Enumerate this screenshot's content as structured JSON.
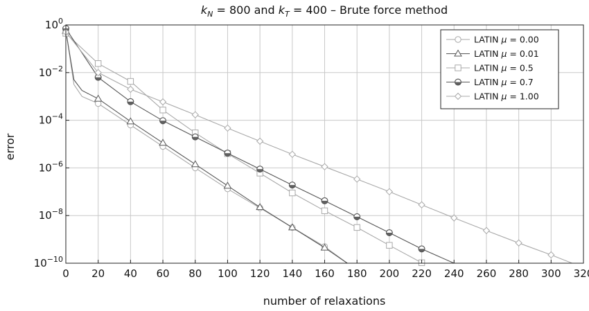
{
  "chart_data": {
    "type": "line",
    "title": "k_N = 800 and k_T = 400 – Brute force method",
    "title_parts": {
      "k1": "k",
      "sub1": "N",
      "mid": " = 800 and ",
      "k2": "k",
      "sub2": "T",
      "tail": " = 400 – Brute force method"
    },
    "xlabel": "number of relaxations",
    "ylabel": "error",
    "xlim": [
      0,
      320
    ],
    "ylim_log10": [
      -10,
      0
    ],
    "y_scale": "log",
    "grid": true,
    "legend_position": "top-right",
    "x_ticks": [
      "0",
      "20",
      "40",
      "60",
      "80",
      "100",
      "120",
      "140",
      "160",
      "180",
      "200",
      "220",
      "240",
      "260",
      "280",
      "300",
      "320"
    ],
    "y_ticks": [
      {
        "base": "10",
        "exp": "0"
      },
      {
        "base": "10",
        "exp": "−2"
      },
      {
        "base": "10",
        "exp": "−4"
      },
      {
        "base": "10",
        "exp": "−6"
      },
      {
        "base": "10",
        "exp": "−8"
      },
      {
        "base": "10",
        "exp": "−10"
      }
    ],
    "series": [
      {
        "name": "LATIN μ = 0.00",
        "legend_label": {
          "pre": "LATIN ",
          "mu": "μ",
          "post": " = 0.00"
        },
        "marker": "circle",
        "fill": "white",
        "color": "#a8a8a8",
        "x": [
          0,
          5,
          10,
          20,
          40,
          60,
          80,
          100,
          120,
          140,
          160,
          174
        ],
        "log10y": [
          -0.2,
          -2.5,
          -3.0,
          -3.3,
          -4.2,
          -5.1,
          -6.0,
          -6.88,
          -7.68,
          -8.5,
          -9.3,
          -10.0
        ],
        "marker_x": [
          0,
          20,
          40,
          60,
          80,
          100,
          120,
          140,
          160
        ],
        "marker_log10y": [
          -0.2,
          -3.3,
          -4.2,
          -5.1,
          -6.0,
          -6.88,
          -7.68,
          -8.5,
          -9.3
        ]
      },
      {
        "name": "LATIN μ = 0.01",
        "legend_label": {
          "pre": "LATIN ",
          "mu": "μ",
          "post": " = 0.01"
        },
        "marker": "triangle",
        "fill": "white",
        "color": "#555555",
        "x": [
          0,
          5,
          10,
          20,
          40,
          60,
          80,
          100,
          120,
          140,
          160,
          174
        ],
        "log10y": [
          -0.25,
          -2.3,
          -2.75,
          -3.1,
          -4.05,
          -4.95,
          -5.85,
          -6.75,
          -7.65,
          -8.5,
          -9.35,
          -10.0
        ],
        "marker_x": [
          0,
          20,
          40,
          60,
          80,
          100,
          120,
          140,
          160
        ],
        "marker_log10y": [
          -0.25,
          -3.1,
          -4.05,
          -4.95,
          -5.85,
          -6.75,
          -7.65,
          -8.5,
          -9.35
        ]
      },
      {
        "name": "LATIN μ = 0.5",
        "legend_label": {
          "pre": "LATIN ",
          "mu": "μ",
          "post": " = 0.5"
        },
        "marker": "square",
        "fill": "white",
        "color": "#a8a8a8",
        "x": [
          0,
          20,
          40,
          60,
          80,
          100,
          120,
          140,
          160,
          180,
          200,
          220,
          222
        ],
        "log10y": [
          -0.35,
          -1.62,
          -2.37,
          -3.57,
          -4.53,
          -5.4,
          -6.22,
          -7.05,
          -7.8,
          -8.5,
          -9.25,
          -9.98,
          -10.0
        ],
        "marker_x": [
          0,
          20,
          40,
          60,
          80,
          100,
          120,
          140,
          160,
          180,
          200,
          220
        ],
        "marker_log10y": [
          -0.35,
          -1.62,
          -2.37,
          -3.57,
          -4.53,
          -5.4,
          -6.22,
          -7.05,
          -7.8,
          -8.5,
          -9.25,
          -9.98
        ]
      },
      {
        "name": "LATIN μ = 0.7",
        "legend_label": {
          "pre": "LATIN ",
          "mu": "μ",
          "post": " = 0.7"
        },
        "marker": "half-circle",
        "fill": "#606060",
        "color": "#555555",
        "x": [
          0,
          20,
          40,
          60,
          80,
          100,
          120,
          140,
          160,
          180,
          200,
          220,
          240
        ],
        "log10y": [
          -0.15,
          -2.2,
          -3.22,
          -4.02,
          -4.7,
          -5.38,
          -6.05,
          -6.72,
          -7.38,
          -8.05,
          -8.72,
          -9.4,
          -10.0
        ],
        "marker_x": [
          0,
          20,
          40,
          60,
          80,
          100,
          120,
          140,
          160,
          180,
          200,
          220
        ],
        "marker_log10y": [
          -0.15,
          -2.2,
          -3.22,
          -4.02,
          -4.7,
          -5.38,
          -6.05,
          -6.72,
          -7.38,
          -8.05,
          -8.72,
          -9.4
        ]
      },
      {
        "name": "LATIN μ = 1.00",
        "legend_label": {
          "pre": "LATIN ",
          "mu": "μ",
          "post": " = 1.00"
        },
        "marker": "diamond",
        "fill": "white",
        "color": "#a8a8a8",
        "x": [
          0,
          20,
          40,
          60,
          80,
          100,
          120,
          140,
          160,
          180,
          200,
          220,
          240,
          260,
          280,
          300,
          313
        ],
        "log10y": [
          -0.3,
          -2.0,
          -2.7,
          -3.23,
          -3.77,
          -4.33,
          -4.88,
          -5.43,
          -5.95,
          -6.47,
          -7.0,
          -7.55,
          -8.1,
          -8.63,
          -9.15,
          -9.65,
          -10.0
        ],
        "marker_x": [
          0,
          20,
          40,
          60,
          80,
          100,
          120,
          140,
          160,
          180,
          200,
          220,
          240,
          260,
          280,
          300
        ],
        "marker_log10y": [
          -0.3,
          -2.0,
          -2.7,
          -3.23,
          -3.77,
          -4.33,
          -4.88,
          -5.43,
          -5.95,
          -6.47,
          -7.0,
          -7.55,
          -8.1,
          -8.63,
          -9.15,
          -9.65
        ]
      }
    ]
  }
}
